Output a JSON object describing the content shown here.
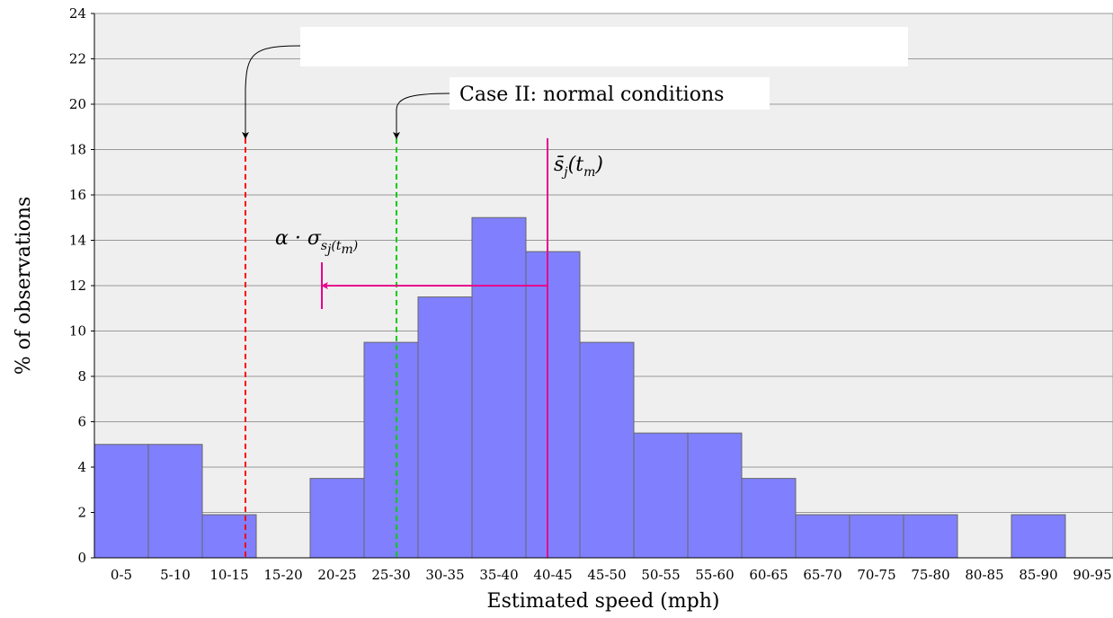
{
  "chart_data": {
    "type": "bar",
    "xlabel": "Estimated speed (mph)",
    "ylabel": "% of observations",
    "ylim": [
      0,
      24
    ],
    "yticks": [
      0,
      2,
      4,
      6,
      8,
      10,
      12,
      14,
      16,
      18,
      20,
      22,
      24
    ],
    "grid": "horizontal",
    "categories": [
      "0-5",
      "5-10",
      "10-15",
      "15-20",
      "20-25",
      "25-30",
      "30-35",
      "35-40",
      "40-45",
      "45-50",
      "50-55",
      "55-60",
      "60-65",
      "65-70",
      "70-75",
      "75-80",
      "80-85",
      "85-90",
      "90-95"
    ],
    "values": [
      5,
      5,
      1.9,
      0,
      3.5,
      9.5,
      11.5,
      15,
      13.5,
      9.5,
      5.5,
      5.5,
      3.5,
      1.9,
      1.9,
      1.9,
      0,
      1.9,
      0
    ],
    "bar_color": "#8080ff",
    "bar_edge_color": "#666666",
    "annotations": {
      "case1": {
        "label": "",
        "speed": 14,
        "top": 18.5,
        "color": "#ff0000"
      },
      "case2": {
        "label": "Case II: normal conditions",
        "speed": 28,
        "top": 18.5,
        "color": "#00cc00"
      },
      "mean": {
        "label_main": "s̄",
        "label_sub": "j",
        "label_rest": "(t",
        "label_sub2": "m",
        "label_close": ")",
        "speed": 42,
        "top": 18.5,
        "color": "#e6008c"
      },
      "deviation": {
        "label_main": "α · σ",
        "label_sub": "s",
        "label_subsub": "j",
        "label_sub_rest": "(t",
        "label_subsub2": "m",
        "label_sub_close": ")",
        "from_speed": 42,
        "to_speed": 22,
        "level": 12,
        "color": "#e6008c"
      }
    }
  }
}
